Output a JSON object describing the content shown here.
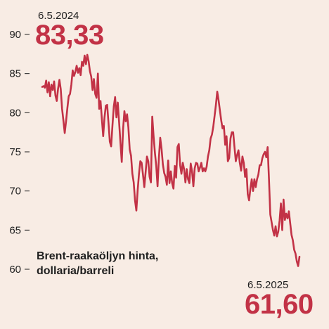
{
  "colors": {
    "line": "#c23246",
    "background": "#f8ece4",
    "axis_text": "#1f1f1f"
  },
  "annotations": {
    "start_date": "6.5.2024",
    "start_value": "83,33",
    "end_date": "6.5.2025",
    "end_value": "61,60"
  },
  "caption": {
    "line1": "Brent-raakaöljyn hinta,",
    "line2": "dollaria/barreli"
  },
  "chart_data": {
    "type": "line",
    "title": "",
    "xlabel": "",
    "ylabel": "Brent-raakaöljyn hinta, dollaria/barreli",
    "ylim": [
      58,
      92
    ],
    "yticks": [
      60,
      65,
      70,
      75,
      80,
      85,
      90
    ],
    "ytick_labels": [
      "60",
      "65",
      "70",
      "75",
      "80",
      "85",
      "90"
    ],
    "grid": false,
    "legend": "none",
    "x_start": "6.5.2024",
    "x_end": "6.5.2025",
    "series": [
      {
        "values": [
          83.3,
          83.4,
          83.2,
          84.1,
          82.6,
          83.9,
          82.1,
          83.6,
          82.9,
          84.0,
          82.2,
          81.5,
          83.1,
          84.2,
          83.0,
          80.5,
          79.0,
          77.4,
          78.9,
          80.6,
          82.1,
          82.4,
          83.6,
          85.4,
          84.7,
          85.2,
          86.0,
          85.1,
          85.7,
          84.8,
          86.5,
          86.0,
          87.3,
          86.2,
          87.4,
          86.6,
          85.3,
          84.6,
          82.9,
          84.3,
          82.4,
          81.9,
          85.0,
          80.5,
          81.5,
          79.2,
          77.0,
          79.4,
          80.9,
          81.0,
          78.7,
          76.3,
          75.7,
          78.4,
          80.8,
          82.0,
          79.4,
          81.3,
          78.8,
          76.2,
          73.7,
          77.9,
          80.2,
          78.9,
          79.8,
          78.1,
          75.3,
          74.5,
          72.2,
          71.1,
          68.8,
          67.5,
          70.1,
          72.2,
          73.8,
          73.6,
          72.1,
          70.5,
          72.4,
          74.4,
          73.8,
          71.8,
          71.1,
          79.5,
          77.0,
          74.9,
          73.2,
          70.6,
          74.2,
          76.8,
          75.4,
          73.4,
          72.3,
          71.8,
          70.8,
          73.9,
          71.0,
          72.5,
          71.0,
          70.3,
          73.2,
          71.7,
          75.6,
          76.0,
          73.3,
          72.2,
          73.6,
          72.8,
          71.1,
          72.8,
          71.5,
          71.0,
          73.5,
          72.5,
          70.6,
          72.9,
          73.6,
          73.5,
          72.5,
          73.0,
          73.6,
          72.5,
          72.9,
          72.5,
          73.1,
          74.4,
          75.2,
          76.7,
          77.2,
          78.2,
          79.6,
          81.0,
          82.7,
          81.6,
          80.3,
          79.0,
          78.0,
          78.3,
          75.9,
          77.0,
          73.8,
          74.2,
          76.7,
          77.5,
          77.5,
          75.6,
          73.8,
          74.6,
          75.2,
          73.6,
          72.6,
          74.4,
          73.6,
          71.8,
          72.8,
          69.6,
          68.8,
          70.3,
          71.5,
          70.0,
          71.5,
          70.5,
          71.5,
          72.1,
          73.3,
          73.3,
          74.2,
          74.7,
          75.0,
          74.3,
          75.6,
          71.5,
          67.0,
          66.0,
          65.0,
          64.3,
          65.5,
          64.2,
          64.8,
          66.2,
          68.4,
          65.0,
          68.9,
          66.3,
          67.1,
          66.5,
          67.4,
          65.9,
          64.4,
          63.7,
          62.5,
          62.0,
          61.0,
          60.4,
          61.6
        ]
      }
    ]
  }
}
